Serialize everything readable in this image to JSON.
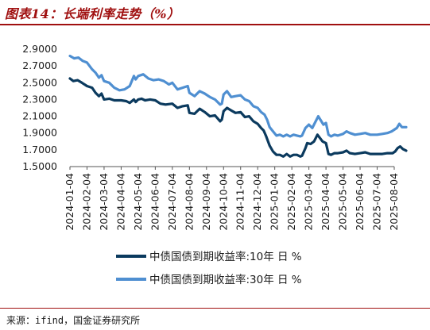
{
  "figure": {
    "title": "图表14：长端利率走势（%）",
    "source": "来源：ifind，国金证券研究所"
  },
  "colors": {
    "title": "#a01010",
    "series_10y": "#0b3a5e",
    "series_30y": "#4f8fd1"
  },
  "chart_data": {
    "type": "line",
    "ylim": [
      1.5,
      2.9
    ],
    "y_ticks": [
      "2.9000",
      "2.7000",
      "2.5000",
      "2.3000",
      "2.1000",
      "1.9000",
      "1.7000",
      "1.5000"
    ],
    "x_ticks": [
      "2024-01-04",
      "2024-02-04",
      "2024-03-04",
      "2024-04-04",
      "2024-05-04",
      "2024-06-04",
      "2024-07-04",
      "2024-08-04",
      "2024-09-04",
      "2024-10-04",
      "2024-11-04",
      "2024-12-04",
      "2025-01-04",
      "2025-02-04",
      "2025-03-04",
      "2025-04-04",
      "2025-05-04",
      "2025-06-04",
      "2025-07-04",
      "2025-08-04"
    ],
    "grid": false,
    "legend_position": "bottom",
    "series": [
      {
        "name": "中债国债到期收益率:10年 日 %",
        "values": [
          [
            0,
            2.55
          ],
          [
            0.2,
            2.52
          ],
          [
            0.45,
            2.53
          ],
          [
            0.7,
            2.5
          ],
          [
            1.0,
            2.46
          ],
          [
            1.3,
            2.44
          ],
          [
            1.5,
            2.38
          ],
          [
            1.7,
            2.34
          ],
          [
            1.85,
            2.37
          ],
          [
            2.0,
            2.3
          ],
          [
            2.3,
            2.31
          ],
          [
            2.6,
            2.29
          ],
          [
            3.0,
            2.29
          ],
          [
            3.3,
            2.28
          ],
          [
            3.5,
            2.26
          ],
          [
            3.75,
            2.3
          ],
          [
            3.85,
            2.27
          ],
          [
            4.0,
            2.3
          ],
          [
            4.2,
            2.31
          ],
          [
            4.4,
            2.29
          ],
          [
            4.7,
            2.3
          ],
          [
            5.0,
            2.29
          ],
          [
            5.3,
            2.25
          ],
          [
            5.6,
            2.24
          ],
          [
            6.0,
            2.25
          ],
          [
            6.3,
            2.2
          ],
          [
            6.6,
            2.22
          ],
          [
            6.9,
            2.23
          ],
          [
            7.0,
            2.14
          ],
          [
            7.3,
            2.13
          ],
          [
            7.6,
            2.19
          ],
          [
            7.9,
            2.15
          ],
          [
            8.2,
            2.1
          ],
          [
            8.5,
            2.11
          ],
          [
            8.8,
            2.04
          ],
          [
            8.9,
            2.06
          ],
          [
            9.0,
            2.16
          ],
          [
            9.2,
            2.2
          ],
          [
            9.45,
            2.17
          ],
          [
            9.7,
            2.14
          ],
          [
            10.0,
            2.15
          ],
          [
            10.25,
            2.09
          ],
          [
            10.5,
            2.1
          ],
          [
            10.75,
            2.04
          ],
          [
            11.0,
            2.01
          ],
          [
            11.2,
            1.96
          ],
          [
            11.35,
            1.93
          ],
          [
            11.5,
            1.86
          ],
          [
            11.7,
            1.75
          ],
          [
            11.9,
            1.68
          ],
          [
            12.1,
            1.64
          ],
          [
            12.3,
            1.64
          ],
          [
            12.5,
            1.62
          ],
          [
            12.7,
            1.65
          ],
          [
            12.9,
            1.62
          ],
          [
            13.1,
            1.64
          ],
          [
            13.3,
            1.64
          ],
          [
            13.5,
            1.62
          ],
          [
            13.6,
            1.63
          ],
          [
            13.8,
            1.72
          ],
          [
            13.9,
            1.78
          ],
          [
            14.1,
            1.77
          ],
          [
            14.3,
            1.8
          ],
          [
            14.5,
            1.88
          ],
          [
            14.65,
            1.84
          ],
          [
            14.8,
            1.8
          ],
          [
            15.0,
            1.78
          ],
          [
            15.15,
            1.65
          ],
          [
            15.3,
            1.64
          ],
          [
            15.5,
            1.66
          ],
          [
            15.7,
            1.66
          ],
          [
            16.0,
            1.67
          ],
          [
            16.2,
            1.69
          ],
          [
            16.4,
            1.66
          ],
          [
            16.7,
            1.65
          ],
          [
            17.0,
            1.66
          ],
          [
            17.3,
            1.67
          ],
          [
            17.6,
            1.65
          ],
          [
            18.0,
            1.65
          ],
          [
            18.3,
            1.65
          ],
          [
            18.6,
            1.66
          ],
          [
            18.9,
            1.66
          ],
          [
            19.05,
            1.68
          ],
          [
            19.2,
            1.72
          ],
          [
            19.35,
            1.74
          ],
          [
            19.5,
            1.71
          ],
          [
            19.7,
            1.69
          ]
        ]
      },
      {
        "name": "中债国债到期收益率:30年 日 %",
        "values": [
          [
            0,
            2.82
          ],
          [
            0.25,
            2.79
          ],
          [
            0.5,
            2.8
          ],
          [
            0.75,
            2.76
          ],
          [
            1.0,
            2.74
          ],
          [
            1.3,
            2.66
          ],
          [
            1.5,
            2.62
          ],
          [
            1.7,
            2.56
          ],
          [
            1.85,
            2.59
          ],
          [
            2.0,
            2.52
          ],
          [
            2.3,
            2.5
          ],
          [
            2.6,
            2.44
          ],
          [
            2.9,
            2.41
          ],
          [
            3.2,
            2.42
          ],
          [
            3.5,
            2.46
          ],
          [
            3.75,
            2.58
          ],
          [
            3.85,
            2.54
          ],
          [
            4.0,
            2.58
          ],
          [
            4.3,
            2.6
          ],
          [
            4.6,
            2.55
          ],
          [
            4.9,
            2.53
          ],
          [
            5.2,
            2.54
          ],
          [
            5.5,
            2.52
          ],
          [
            5.8,
            2.48
          ],
          [
            6.0,
            2.5
          ],
          [
            6.3,
            2.42
          ],
          [
            6.6,
            2.44
          ],
          [
            6.9,
            2.46
          ],
          [
            7.0,
            2.38
          ],
          [
            7.3,
            2.34
          ],
          [
            7.6,
            2.4
          ],
          [
            7.9,
            2.37
          ],
          [
            8.2,
            2.33
          ],
          [
            8.5,
            2.3
          ],
          [
            8.8,
            2.24
          ],
          [
            8.9,
            2.25
          ],
          [
            9.0,
            2.36
          ],
          [
            9.2,
            2.4
          ],
          [
            9.45,
            2.33
          ],
          [
            9.7,
            2.34
          ],
          [
            10.0,
            2.35
          ],
          [
            10.25,
            2.3
          ],
          [
            10.5,
            2.28
          ],
          [
            10.75,
            2.22
          ],
          [
            11.0,
            2.2
          ],
          [
            11.2,
            2.15
          ],
          [
            11.4,
            2.12
          ],
          [
            11.55,
            2.06
          ],
          [
            11.7,
            1.97
          ],
          [
            11.9,
            1.92
          ],
          [
            12.1,
            1.87
          ],
          [
            12.3,
            1.88
          ],
          [
            12.5,
            1.86
          ],
          [
            12.7,
            1.88
          ],
          [
            12.9,
            1.86
          ],
          [
            13.1,
            1.88
          ],
          [
            13.3,
            1.87
          ],
          [
            13.5,
            1.86
          ],
          [
            13.6,
            1.87
          ],
          [
            13.8,
            1.96
          ],
          [
            14.0,
            2.0
          ],
          [
            14.2,
            1.96
          ],
          [
            14.4,
            2.04
          ],
          [
            14.55,
            2.1
          ],
          [
            14.7,
            2.05
          ],
          [
            14.85,
            2.0
          ],
          [
            15.0,
            2.02
          ],
          [
            15.15,
            1.88
          ],
          [
            15.3,
            1.86
          ],
          [
            15.5,
            1.88
          ],
          [
            15.7,
            1.87
          ],
          [
            16.0,
            1.89
          ],
          [
            16.2,
            1.92
          ],
          [
            16.4,
            1.9
          ],
          [
            16.7,
            1.88
          ],
          [
            17.0,
            1.89
          ],
          [
            17.3,
            1.9
          ],
          [
            17.6,
            1.88
          ],
          [
            18.0,
            1.88
          ],
          [
            18.3,
            1.89
          ],
          [
            18.6,
            1.9
          ],
          [
            18.85,
            1.92
          ],
          [
            19.0,
            1.94
          ],
          [
            19.15,
            1.96
          ],
          [
            19.3,
            2.01
          ],
          [
            19.45,
            1.97
          ],
          [
            19.7,
            1.97
          ]
        ]
      }
    ]
  }
}
